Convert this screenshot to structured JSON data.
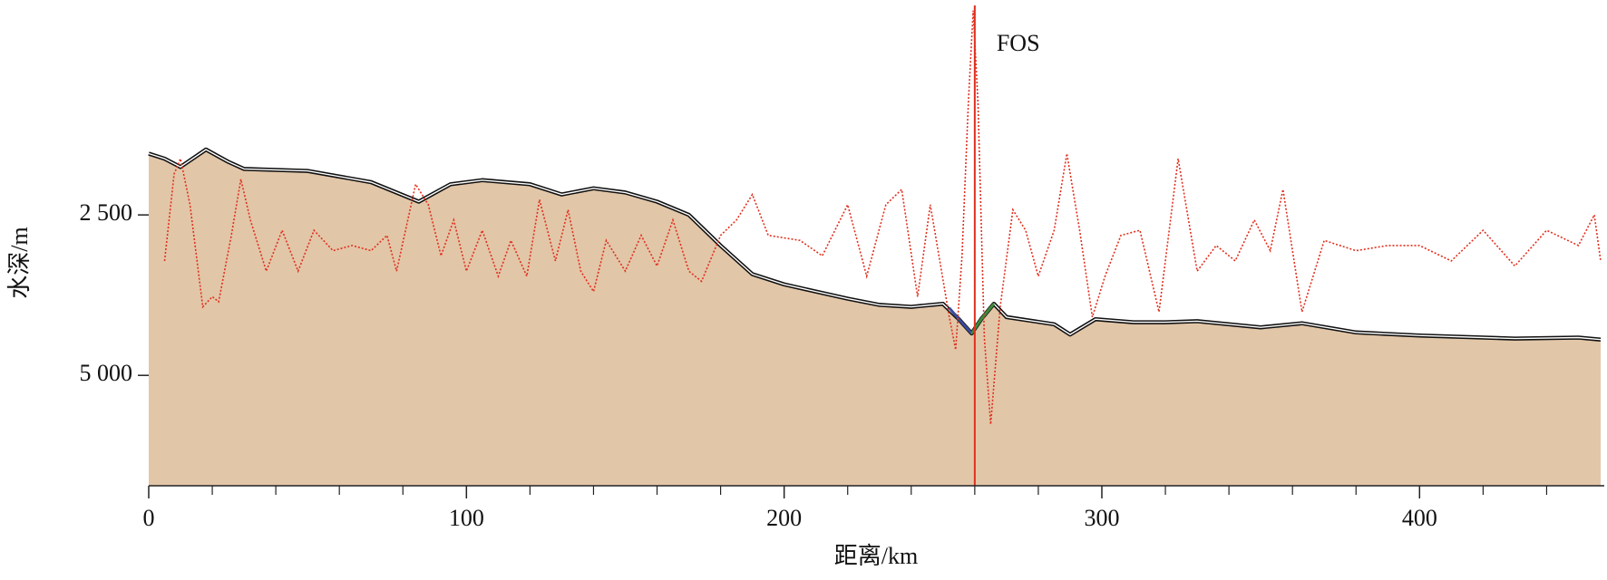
{
  "chart_data": {
    "type": "line",
    "x_label": "距离/km",
    "y_label": "水深/m",
    "xlim": [
      0,
      457
    ],
    "ylim": [
      -764,
      6720
    ],
    "y_inverted": true,
    "xticks": [
      0,
      100,
      200,
      300,
      400
    ],
    "xminor_ticks": [
      20,
      40,
      60,
      80,
      120,
      140,
      160,
      180,
      220,
      240,
      260,
      280,
      320,
      340,
      360,
      380,
      420,
      440
    ],
    "yticks": [
      {
        "value": 2500,
        "label": "2 500"
      },
      {
        "value": 5000,
        "label": "5 000"
      }
    ],
    "series": [
      {
        "color": "#111111",
        "fill": "#e2c6a8",
        "area": true,
        "x": [
          0,
          5,
          10,
          18,
          25,
          30,
          50,
          70,
          85,
          95,
          105,
          120,
          130,
          140,
          150,
          160,
          170,
          180,
          190,
          200,
          220,
          230,
          240,
          250,
          255,
          259,
          262,
          266,
          270,
          285,
          290,
          298,
          310,
          320,
          330,
          350,
          363,
          380,
          400,
          430,
          450,
          457
        ],
        "values": [
          1545,
          1624,
          1752,
          1481,
          1672,
          1784,
          1815,
          1990,
          2293,
          2022,
          1959,
          2022,
          2182,
          2086,
          2150,
          2293,
          2500,
          2978,
          3423,
          3583,
          3805,
          3901,
          3933,
          3885,
          4124,
          4347,
          4124,
          3885,
          4092,
          4203,
          4363,
          4124,
          4172,
          4172,
          4156,
          4251,
          4188,
          4331,
          4379,
          4427,
          4411,
          4443
        ]
      },
      {
        "color": "#3a4a9a",
        "x": [
          252,
          255,
          259
        ],
        "values": [
          3950,
          4124,
          4347
        ]
      },
      {
        "color": "#3f8a3a",
        "x": [
          259,
          262,
          266
        ],
        "values": [
          4347,
          4124,
          3885
        ]
      },
      {
        "color": "#e0301e",
        "dotted": true,
        "x": [
          5,
          8,
          10,
          13,
          17,
          20,
          22,
          26,
          29,
          32,
          37,
          42,
          47,
          52,
          58,
          64,
          70,
          75,
          78,
          84,
          88,
          92,
          96,
          100,
          105,
          110,
          114,
          119,
          123,
          128,
          132,
          136,
          140,
          144,
          150,
          155,
          160,
          165,
          170,
          174,
          180,
          185,
          190,
          195,
          205,
          212,
          220,
          226,
          232,
          237,
          242,
          246,
          252,
          254,
          256,
          258,
          259.5,
          261,
          263,
          265,
          268,
          272,
          276,
          280,
          285,
          289,
          293,
          297,
          301,
          306,
          312,
          318,
          324,
          330,
          336,
          342,
          348,
          353,
          357,
          363,
          370,
          380,
          390,
          400,
          410,
          420,
          430,
          440,
          450,
          455,
          457
        ],
        "values": [
          3216,
          1863,
          1624,
          2341,
          3933,
          3774,
          3853,
          2818,
          1943,
          2580,
          3376,
          2739,
          3376,
          2739,
          3057,
          2977,
          3057,
          2818,
          3376,
          2022,
          2341,
          3137,
          2580,
          3376,
          2739,
          3455,
          2898,
          3455,
          2261,
          3216,
          2420,
          3376,
          3694,
          2898,
          3376,
          2818,
          3296,
          2580,
          3376,
          3535,
          2818,
          2580,
          2182,
          2818,
          2898,
          3137,
          2341,
          3455,
          2341,
          2102,
          3774,
          2341,
          4092,
          4601,
          3137,
          750,
          -684,
          750,
          4410,
          5763,
          3933,
          2420,
          2739,
          3455,
          2739,
          1545,
          2739,
          4092,
          3455,
          2818,
          2739,
          4012,
          1624,
          3376,
          2977,
          3216,
          2580,
          3057,
          2102,
          4012,
          2898,
          3057,
          2977,
          2977,
          3216,
          2739,
          3296,
          2739,
          2977,
          2500,
          3216
        ]
      }
    ],
    "markers": [
      {
        "x": 260,
        "label": "FOS",
        "color": "#e0301e"
      }
    ]
  }
}
